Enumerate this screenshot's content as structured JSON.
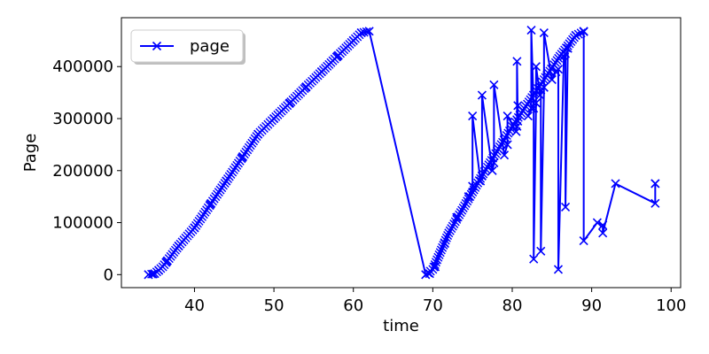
{
  "chart_data": {
    "type": "line",
    "title": "",
    "xlabel": "time",
    "ylabel": "Page",
    "xlim": [
      30.8,
      101.2
    ],
    "ylim": [
      -25000,
      494000
    ],
    "xticks": [
      40,
      50,
      60,
      70,
      80,
      90,
      100
    ],
    "yticks": [
      0,
      100000,
      200000,
      300000,
      400000
    ],
    "grid": false,
    "legend": {
      "position": "top-left",
      "entries": [
        "page"
      ]
    },
    "series": [
      {
        "name": "page",
        "color": "#0000ff",
        "marker": "x",
        "x": [
          34.2,
          34.8,
          35.5,
          36.5,
          38,
          40,
          42,
          44,
          46,
          48,
          50,
          52,
          54,
          56,
          58,
          60,
          61,
          62,
          69.1,
          69.6,
          70.3,
          71.5,
          73,
          74.5,
          75,
          75,
          76,
          76.2,
          76.2,
          77.5,
          77.7,
          77.7,
          79,
          79.4,
          79.4,
          80.5,
          80.6,
          80.6,
          80.7,
          80.7,
          82,
          82.4,
          82.4,
          82.7,
          82.7,
          83,
          83,
          83.5,
          83.6,
          83.6,
          84,
          84,
          85,
          85.5,
          85.8,
          85.8,
          86.5,
          86.7,
          86.7,
          87,
          88,
          89,
          89,
          89,
          90.7,
          91.4,
          91.4,
          93,
          98,
          98,
          98
        ]
      }
    ],
    "y": [
      0,
      1000,
      8000,
      25000,
      55000,
      90000,
      135000,
      180000,
      225000,
      270000,
      300000,
      330000,
      360000,
      390000,
      420000,
      450000,
      465000,
      468000,
      0,
      2000,
      15000,
      60000,
      110000,
      150000,
      170000,
      305000,
      180000,
      190000,
      345000,
      200000,
      215000,
      365000,
      230000,
      250000,
      305000,
      275000,
      285000,
      410000,
      295000,
      325000,
      305000,
      320000,
      470000,
      320000,
      30000,
      330000,
      400000,
      345000,
      355000,
      45000,
      360000,
      465000,
      375000,
      390000,
      395000,
      10000,
      420000,
      425000,
      130000,
      435000,
      460000,
      467000,
      468000,
      65000,
      100000,
      95000,
      80000,
      175000,
      137000,
      175000,
      175000
    ]
  }
}
